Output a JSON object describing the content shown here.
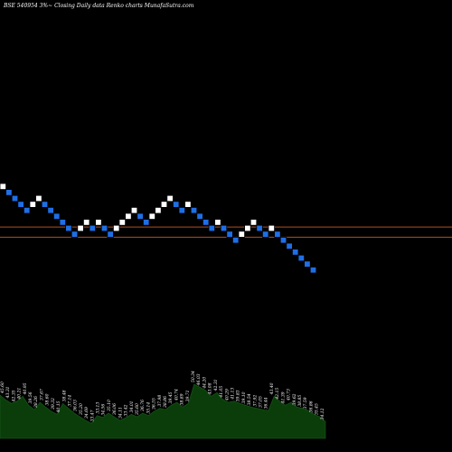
{
  "header": {
    "title": "BSE 540954  3%~ Closing Daily data  Renko  charts MunafaSutra.com"
  },
  "colors": {
    "background": "#000000",
    "up_brick": "#ffffff",
    "down_brick": "#1e6fe6",
    "brick_border": "#000000",
    "reference_line": "#b05020",
    "volume_fill": "#0b3d0b",
    "volume_stroke": "#1a5c1a"
  },
  "chart_data": {
    "type": "renko",
    "brick_size_note": "3%",
    "bricks": [
      {
        "dir": "up",
        "level": 21.0
      },
      {
        "dir": "down",
        "level": 20.0
      },
      {
        "dir": "down",
        "level": 19.0
      },
      {
        "dir": "down",
        "level": 18.0
      },
      {
        "dir": "down",
        "level": 17.0
      },
      {
        "dir": "up",
        "level": 18.0
      },
      {
        "dir": "up",
        "level": 19.0
      },
      {
        "dir": "down",
        "level": 18.0
      },
      {
        "dir": "down",
        "level": 17.0
      },
      {
        "dir": "down",
        "level": 16.0
      },
      {
        "dir": "down",
        "level": 15.0
      },
      {
        "dir": "down",
        "level": 14.0
      },
      {
        "dir": "down",
        "level": 13.0
      },
      {
        "dir": "up",
        "level": 14.0
      },
      {
        "dir": "up",
        "level": 15.0
      },
      {
        "dir": "down",
        "level": 14.0
      },
      {
        "dir": "up",
        "level": 15.0
      },
      {
        "dir": "down",
        "level": 14.0
      },
      {
        "dir": "down",
        "level": 13.0
      },
      {
        "dir": "up",
        "level": 14.0
      },
      {
        "dir": "up",
        "level": 15.0
      },
      {
        "dir": "up",
        "level": 16.0
      },
      {
        "dir": "up",
        "level": 17.0
      },
      {
        "dir": "down",
        "level": 16.0
      },
      {
        "dir": "down",
        "level": 15.0
      },
      {
        "dir": "up",
        "level": 16.0
      },
      {
        "dir": "up",
        "level": 17.0
      },
      {
        "dir": "up",
        "level": 18.0
      },
      {
        "dir": "up",
        "level": 19.0
      },
      {
        "dir": "down",
        "level": 18.0
      },
      {
        "dir": "down",
        "level": 17.0
      },
      {
        "dir": "up",
        "level": 18.0
      },
      {
        "dir": "down",
        "level": 17.0
      },
      {
        "dir": "down",
        "level": 16.0
      },
      {
        "dir": "down",
        "level": 15.0
      },
      {
        "dir": "down",
        "level": 14.0
      },
      {
        "dir": "up",
        "level": 15.0
      },
      {
        "dir": "down",
        "level": 14.0
      },
      {
        "dir": "down",
        "level": 13.0
      },
      {
        "dir": "down",
        "level": 12.0
      },
      {
        "dir": "up",
        "level": 13.0
      },
      {
        "dir": "up",
        "level": 14.0
      },
      {
        "dir": "up",
        "level": 15.0
      },
      {
        "dir": "down",
        "level": 14.0
      },
      {
        "dir": "down",
        "level": 13.0
      },
      {
        "dir": "up",
        "level": 14.0
      },
      {
        "dir": "down",
        "level": 13.0
      },
      {
        "dir": "down",
        "level": 12.0
      },
      {
        "dir": "down",
        "level": 11.0
      },
      {
        "dir": "down",
        "level": 10.0
      },
      {
        "dir": "down",
        "level": 9.0
      },
      {
        "dir": "down",
        "level": 8.0
      },
      {
        "dir": "down",
        "level": 7.0
      }
    ],
    "reference_lines": [
      14.2,
      12.5
    ],
    "volume": [
      72,
      64,
      58,
      62,
      70,
      55,
      48,
      60,
      52,
      45,
      40,
      58,
      50,
      42,
      36,
      30,
      25,
      38,
      35,
      42,
      36,
      30,
      34,
      40,
      36,
      42,
      38,
      45,
      50,
      48,
      55,
      60,
      52,
      58,
      90,
      85,
      80,
      70,
      76,
      65,
      60,
      62,
      58,
      55,
      52,
      50,
      48,
      46,
      70,
      62,
      55,
      60,
      52,
      50,
      46,
      40,
      36,
      28
    ],
    "volume_labels": [
      "45.60",
      "43.31",
      "42.35",
      "40.21",
      "40.95",
      "39.56",
      "38.26",
      "37.67",
      "38.60",
      "39.32",
      "40.15",
      "38.48",
      "37.14",
      "36.03",
      "35.20",
      "34.69",
      "33.47",
      "33.13",
      "34.56",
      "35.10",
      "36.06",
      "34.11",
      "33.42",
      "34.01",
      "35.60",
      "36.76",
      "35.14",
      "36.55",
      "37.98",
      "38.86",
      "39.45",
      "40.74",
      "38.89",
      "39.71",
      "50.34",
      "46.03",
      "44.20",
      "43.08",
      "42.31",
      "41.05",
      "40.29",
      "41.13",
      "39.83",
      "39.10",
      "38.54",
      "37.92",
      "37.05",
      "36.44",
      "43.40",
      "42.15",
      "41.39",
      "40.73",
      "39.62",
      "38.85",
      "37.59",
      "36.86",
      "35.45",
      "34.12"
    ]
  }
}
